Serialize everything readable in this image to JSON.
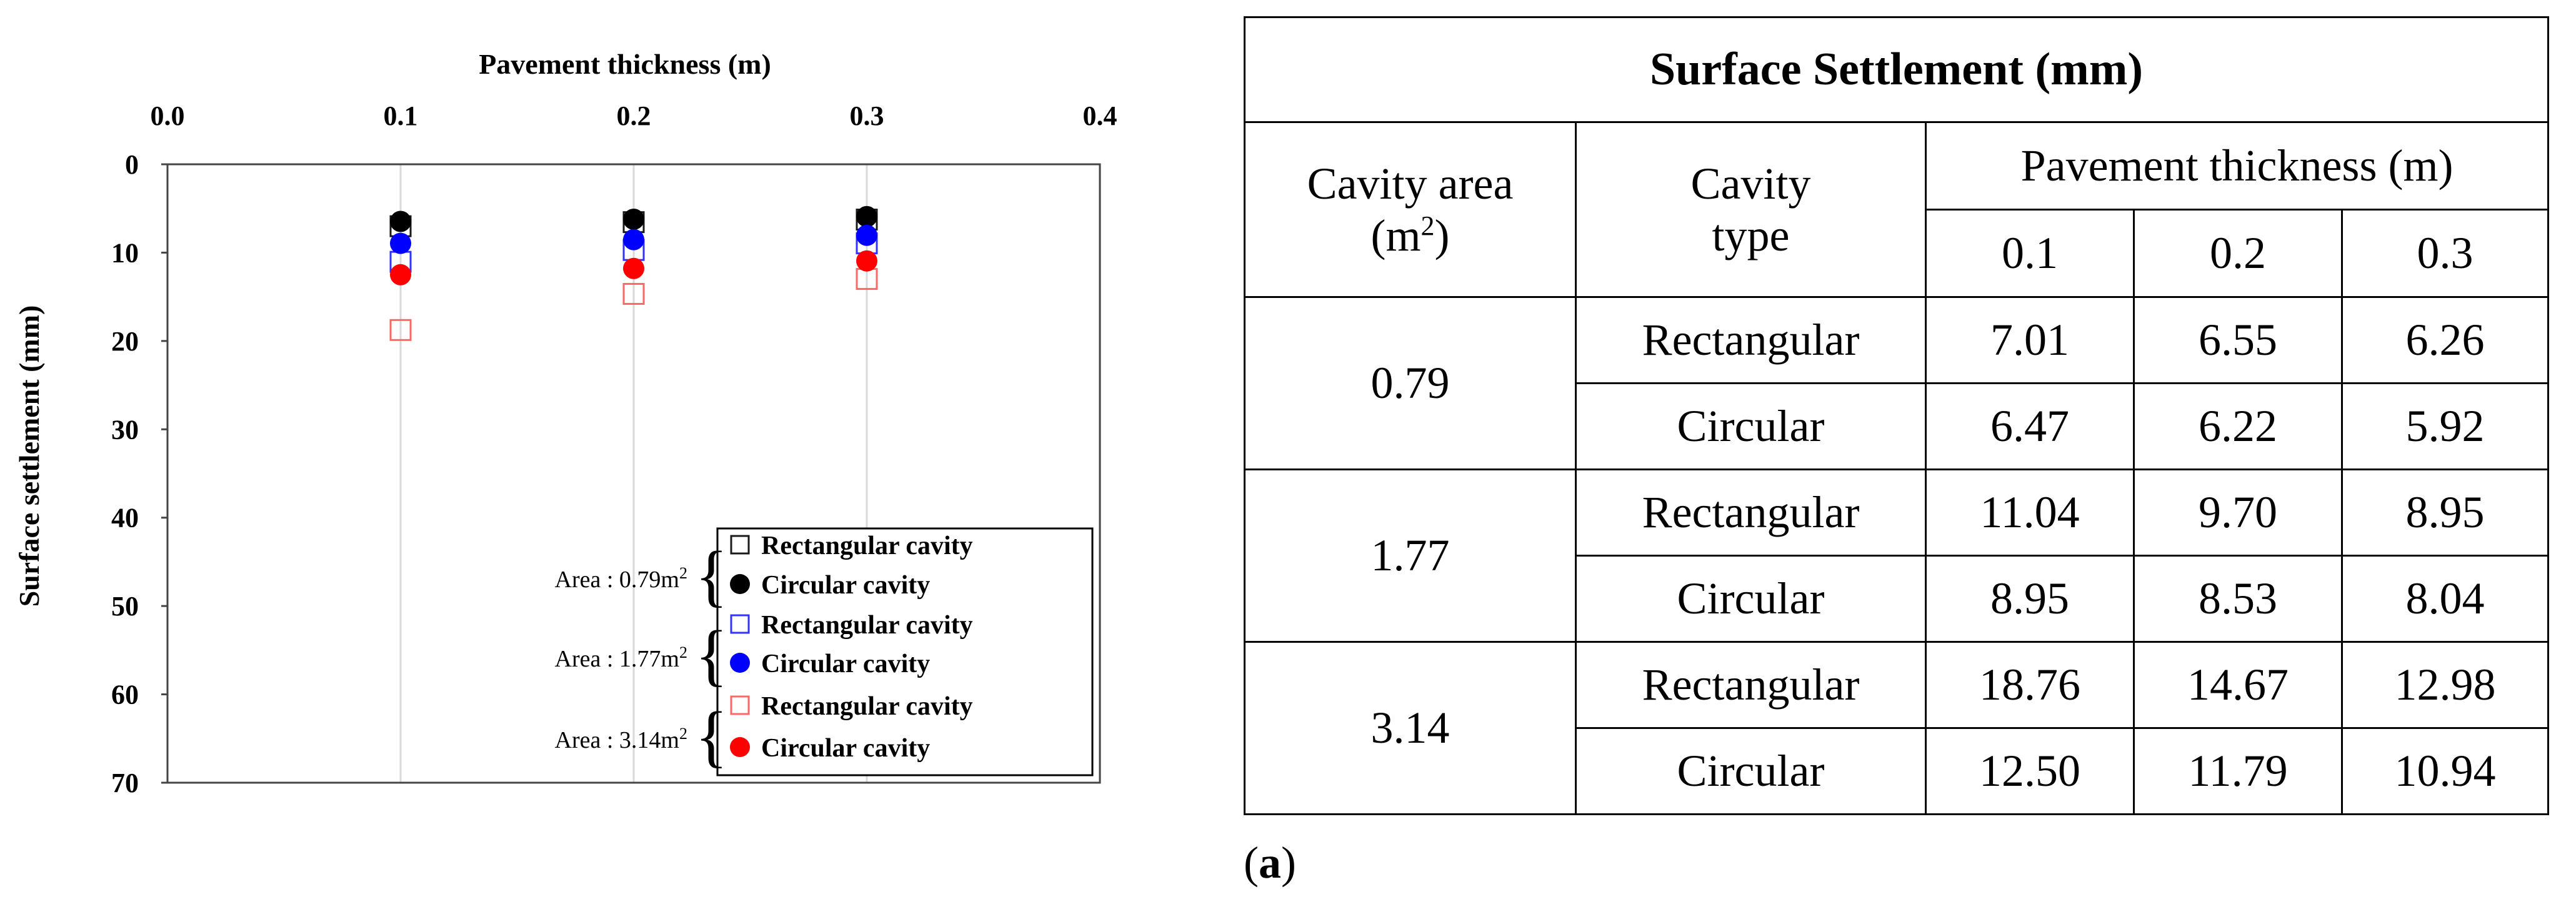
{
  "chart_data": {
    "type": "scatter",
    "title": "",
    "xlabel": "Pavement thickness (m)",
    "ylabel": "Surface settlement (mm)",
    "xlim": [
      0.0,
      0.4
    ],
    "ylim": [
      0,
      70
    ],
    "y_inverted": true,
    "x_axis_position": "top",
    "x_ticks": [
      "0.0",
      "0.1",
      "0.2",
      "0.3",
      "0.4"
    ],
    "y_ticks": [
      "0",
      "10",
      "20",
      "30",
      "40",
      "50",
      "60",
      "70"
    ],
    "grid": "vertical",
    "legend_position": "bottom-right",
    "x": [
      0.1,
      0.2,
      0.3
    ],
    "series": [
      {
        "name": "Rectangular cavity",
        "area_label": "Area : 0.79m",
        "marker": "square-open",
        "color": "#1a1a1a",
        "values": [
          7.01,
          6.55,
          6.26
        ]
      },
      {
        "name": "Circular cavity",
        "area_label": "Area : 0.79m",
        "marker": "circle-filled",
        "color": "#000000",
        "values": [
          6.47,
          6.22,
          5.92
        ]
      },
      {
        "name": "Rectangular cavity",
        "area_label": "Area : 1.77m",
        "marker": "square-open",
        "color": "#3333ff",
        "values": [
          11.04,
          9.7,
          8.95
        ]
      },
      {
        "name": "Circular cavity",
        "area_label": "Area : 1.77m",
        "marker": "circle-filled",
        "color": "#0000ff",
        "values": [
          8.95,
          8.53,
          8.04
        ]
      },
      {
        "name": "Rectangular cavity",
        "area_label": "Area : 3.14m",
        "marker": "square-open",
        "color": "#ff6666",
        "values": [
          18.76,
          14.67,
          12.98
        ]
      },
      {
        "name": "Circular cavity",
        "area_label": "Area : 3.14m",
        "marker": "circle-filled",
        "color": "#ff0000",
        "values": [
          12.5,
          11.79,
          10.94
        ]
      }
    ],
    "legend_groups": [
      {
        "label": "Area : 0.79m",
        "sup": "2"
      },
      {
        "label": "Area : 1.77m",
        "sup": "2"
      },
      {
        "label": "Area : 3.14m",
        "sup": "2"
      }
    ]
  },
  "table": {
    "title": "Surface Settlement (mm)",
    "col_area": "Cavity area",
    "col_area_unit_base": "(m",
    "col_area_unit_sup": "2",
    "col_area_unit_close": ")",
    "col_type_line1": "Cavity",
    "col_type_line2": "type",
    "col_thickness": "Pavement thickness (m)",
    "thicknesses": [
      "0.1",
      "0.2",
      "0.3"
    ],
    "groups": [
      {
        "area": "0.79",
        "rows": [
          {
            "type": "Rectangular",
            "values": [
              "7.01",
              "6.55",
              "6.26"
            ]
          },
          {
            "type": "Circular",
            "values": [
              "6.47",
              "6.22",
              "5.92"
            ]
          }
        ]
      },
      {
        "area": "1.77",
        "rows": [
          {
            "type": "Rectangular",
            "values": [
              "11.04",
              "9.70",
              "8.95"
            ]
          },
          {
            "type": "Circular",
            "values": [
              "8.95",
              "8.53",
              "8.04"
            ]
          }
        ]
      },
      {
        "area": "3.14",
        "rows": [
          {
            "type": "Rectangular",
            "values": [
              "18.76",
              "14.67",
              "12.98"
            ]
          },
          {
            "type": "Circular",
            "values": [
              "12.50",
              "11.79",
              "10.94"
            ]
          }
        ]
      }
    ]
  },
  "caption": {
    "open": "(",
    "letter": "a",
    "close": ")"
  }
}
